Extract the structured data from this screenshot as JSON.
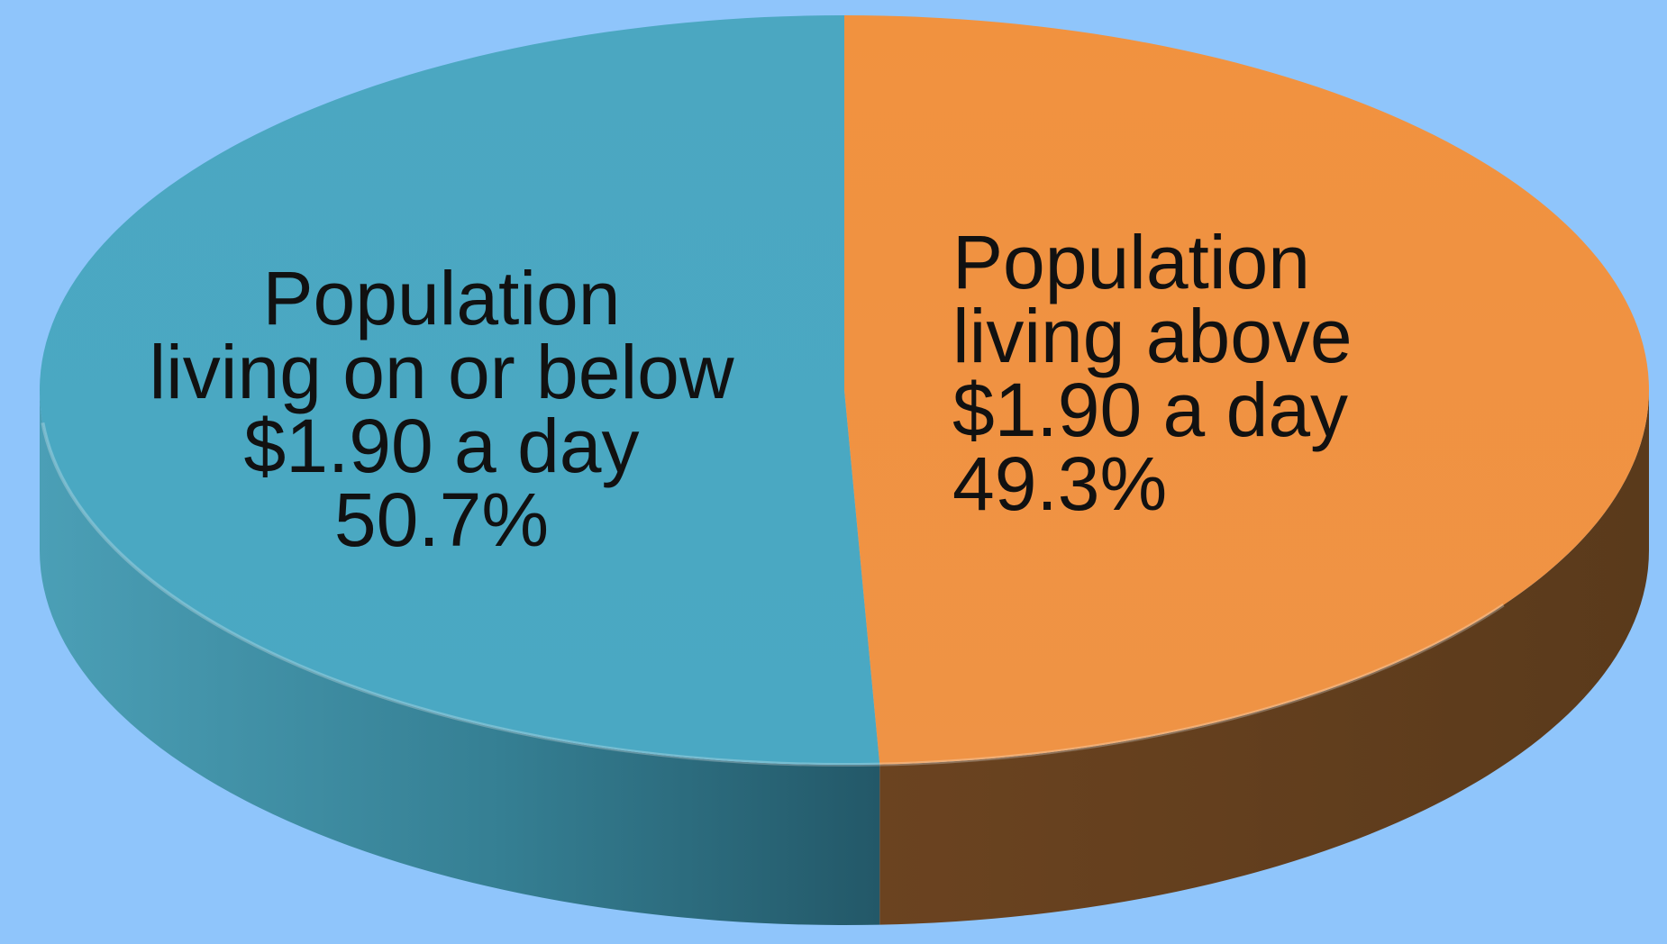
{
  "background_color": "#8fc5fb",
  "chart_data": {
    "type": "pie",
    "style": "3d",
    "slices": [
      {
        "name": "Population living on or below $1.90 a day",
        "label_lines": [
          "Population",
          "living on or below",
          "$1.90 a day",
          "50.7%"
        ],
        "value": 50.7,
        "color": "#4aa7c2"
      },
      {
        "name": "Population living above $1.90 a day",
        "label_lines": [
          "Population",
          "living above",
          "$1.90 a day",
          "49.3%"
        ],
        "value": 49.3,
        "color": "#f0923f"
      }
    ]
  }
}
